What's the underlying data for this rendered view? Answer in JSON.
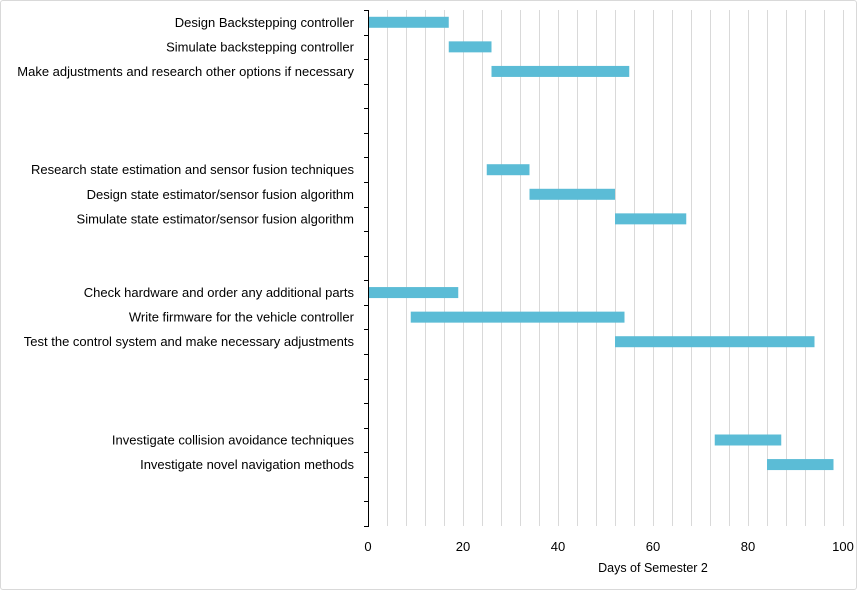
{
  "chart_data": {
    "type": "bar",
    "orientation": "horizontal",
    "stacked_gantt": true,
    "title": "",
    "xlabel": "Days of Semester 2",
    "ylabel": "",
    "xlim": [
      0,
      100
    ],
    "x_ticks": [
      0,
      20,
      40,
      60,
      80,
      100
    ],
    "x_tick_labels": [
      "0",
      "20",
      "40",
      "60",
      "80",
      "100"
    ],
    "grid": "vertical minor lines every 4 units",
    "legend": "none",
    "bar_color": "#5bbcd6",
    "grid_color": "#d9d9d9",
    "axis_color": "#000000",
    "rows": 21,
    "tasks": [
      {
        "row": 0,
        "label": "Design Backstepping controller",
        "start": 0,
        "end": 17
      },
      {
        "row": 1,
        "label": "Simulate backstepping controller",
        "start": 17,
        "end": 26
      },
      {
        "row": 2,
        "label": "Make adjustments and research other options if necessary",
        "start": 26,
        "end": 55
      },
      {
        "row": 6,
        "label": "Research state estimation  and sensor fusion techniques",
        "start": 25,
        "end": 34
      },
      {
        "row": 7,
        "label": "Design state estimator/sensor fusion algorithm",
        "start": 34,
        "end": 52
      },
      {
        "row": 8,
        "label": "Simulate state estimator/sensor fusion algorithm",
        "start": 52,
        "end": 67
      },
      {
        "row": 11,
        "label": "Check hardware and order any additional parts",
        "start": 0,
        "end": 19
      },
      {
        "row": 12,
        "label": "Write firmware for the vehicle controller",
        "start": 9,
        "end": 54
      },
      {
        "row": 13,
        "label": "Test the control system and make necessary adjustments",
        "start": 52,
        "end": 94
      },
      {
        "row": 17,
        "label": "Investigate collision avoidance techniques",
        "start": 73,
        "end": 87
      },
      {
        "row": 18,
        "label": "Investigate novel navigation methods",
        "start": 84,
        "end": 98
      }
    ]
  }
}
